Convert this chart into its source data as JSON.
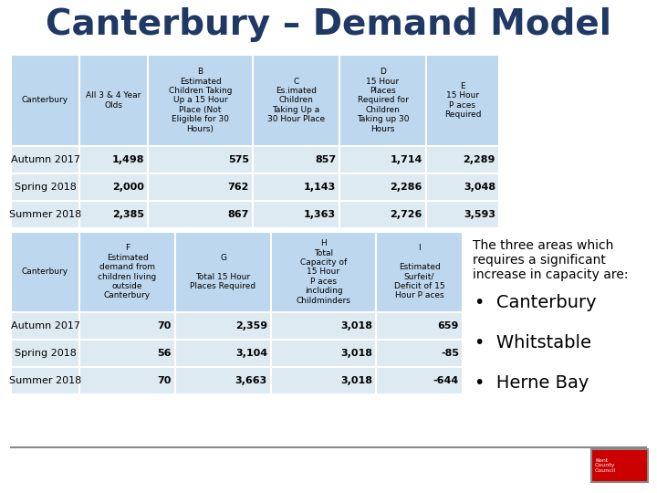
{
  "title": "Canterbury – Demand Model",
  "title_color": "#1F3864",
  "title_fontsize": 28,
  "table1_rows": [
    [
      "Autumn 2017",
      "1,498",
      "575",
      "857",
      "1,714",
      "2,289"
    ],
    [
      "Spring 2018",
      "2,000",
      "762",
      "1,143",
      "2,286",
      "3,048"
    ],
    [
      "Summer 2018",
      "2,385",
      "867",
      "1,363",
      "2,726",
      "3,593"
    ]
  ],
  "table2_rows": [
    [
      "Autumn 2017",
      "70",
      "2,359",
      "3,018",
      "659"
    ],
    [
      "Spring 2018",
      "56",
      "3,104",
      "3,018",
      "-85"
    ],
    [
      "Summer 2018",
      "70",
      "3,663",
      "3,018",
      "-644"
    ]
  ],
  "table1_headers": [
    "Canterbury",
    "All 3 & 4 Year\nOlds",
    "B\nEstimated\nChildren Taking\nUp a 15 Hour\nPlace (Not\nEligible for 30\nHours)",
    "C\nEs.imated\nChildren\nTaking Up a\n30 Hour Place",
    "D\n15 Hour\nPlaces\nRequired for\nChildren\nTaking up 30\nHours",
    "E\n15 Hour\nP aces\nRequired"
  ],
  "table2_headers": [
    "Canterbury",
    "F\nEstimated\ndemand from\nchildren living\noutside\nCanterbury",
    "G\n\nTotal 15 Hour\nPlaces Required",
    "H\nTotal\nCapacity of\n15 Hour\nP aces\nincluding\nChildminders",
    "I\n\nEstimated\nSurfeit/\nDeficit of 15\nHour P aces"
  ],
  "bullet_header": "The three areas which\nrequires a significant\nincrease in capacity are:",
  "bullet_items": [
    "Canterbury",
    "Whitstable",
    "Herne Bay"
  ],
  "header_bg": "#BDD7EE",
  "row_bg": "#DEEAF1",
  "border_color": "#FFFFFF",
  "text_color": "#000000",
  "background_color": "#FFFFFF"
}
